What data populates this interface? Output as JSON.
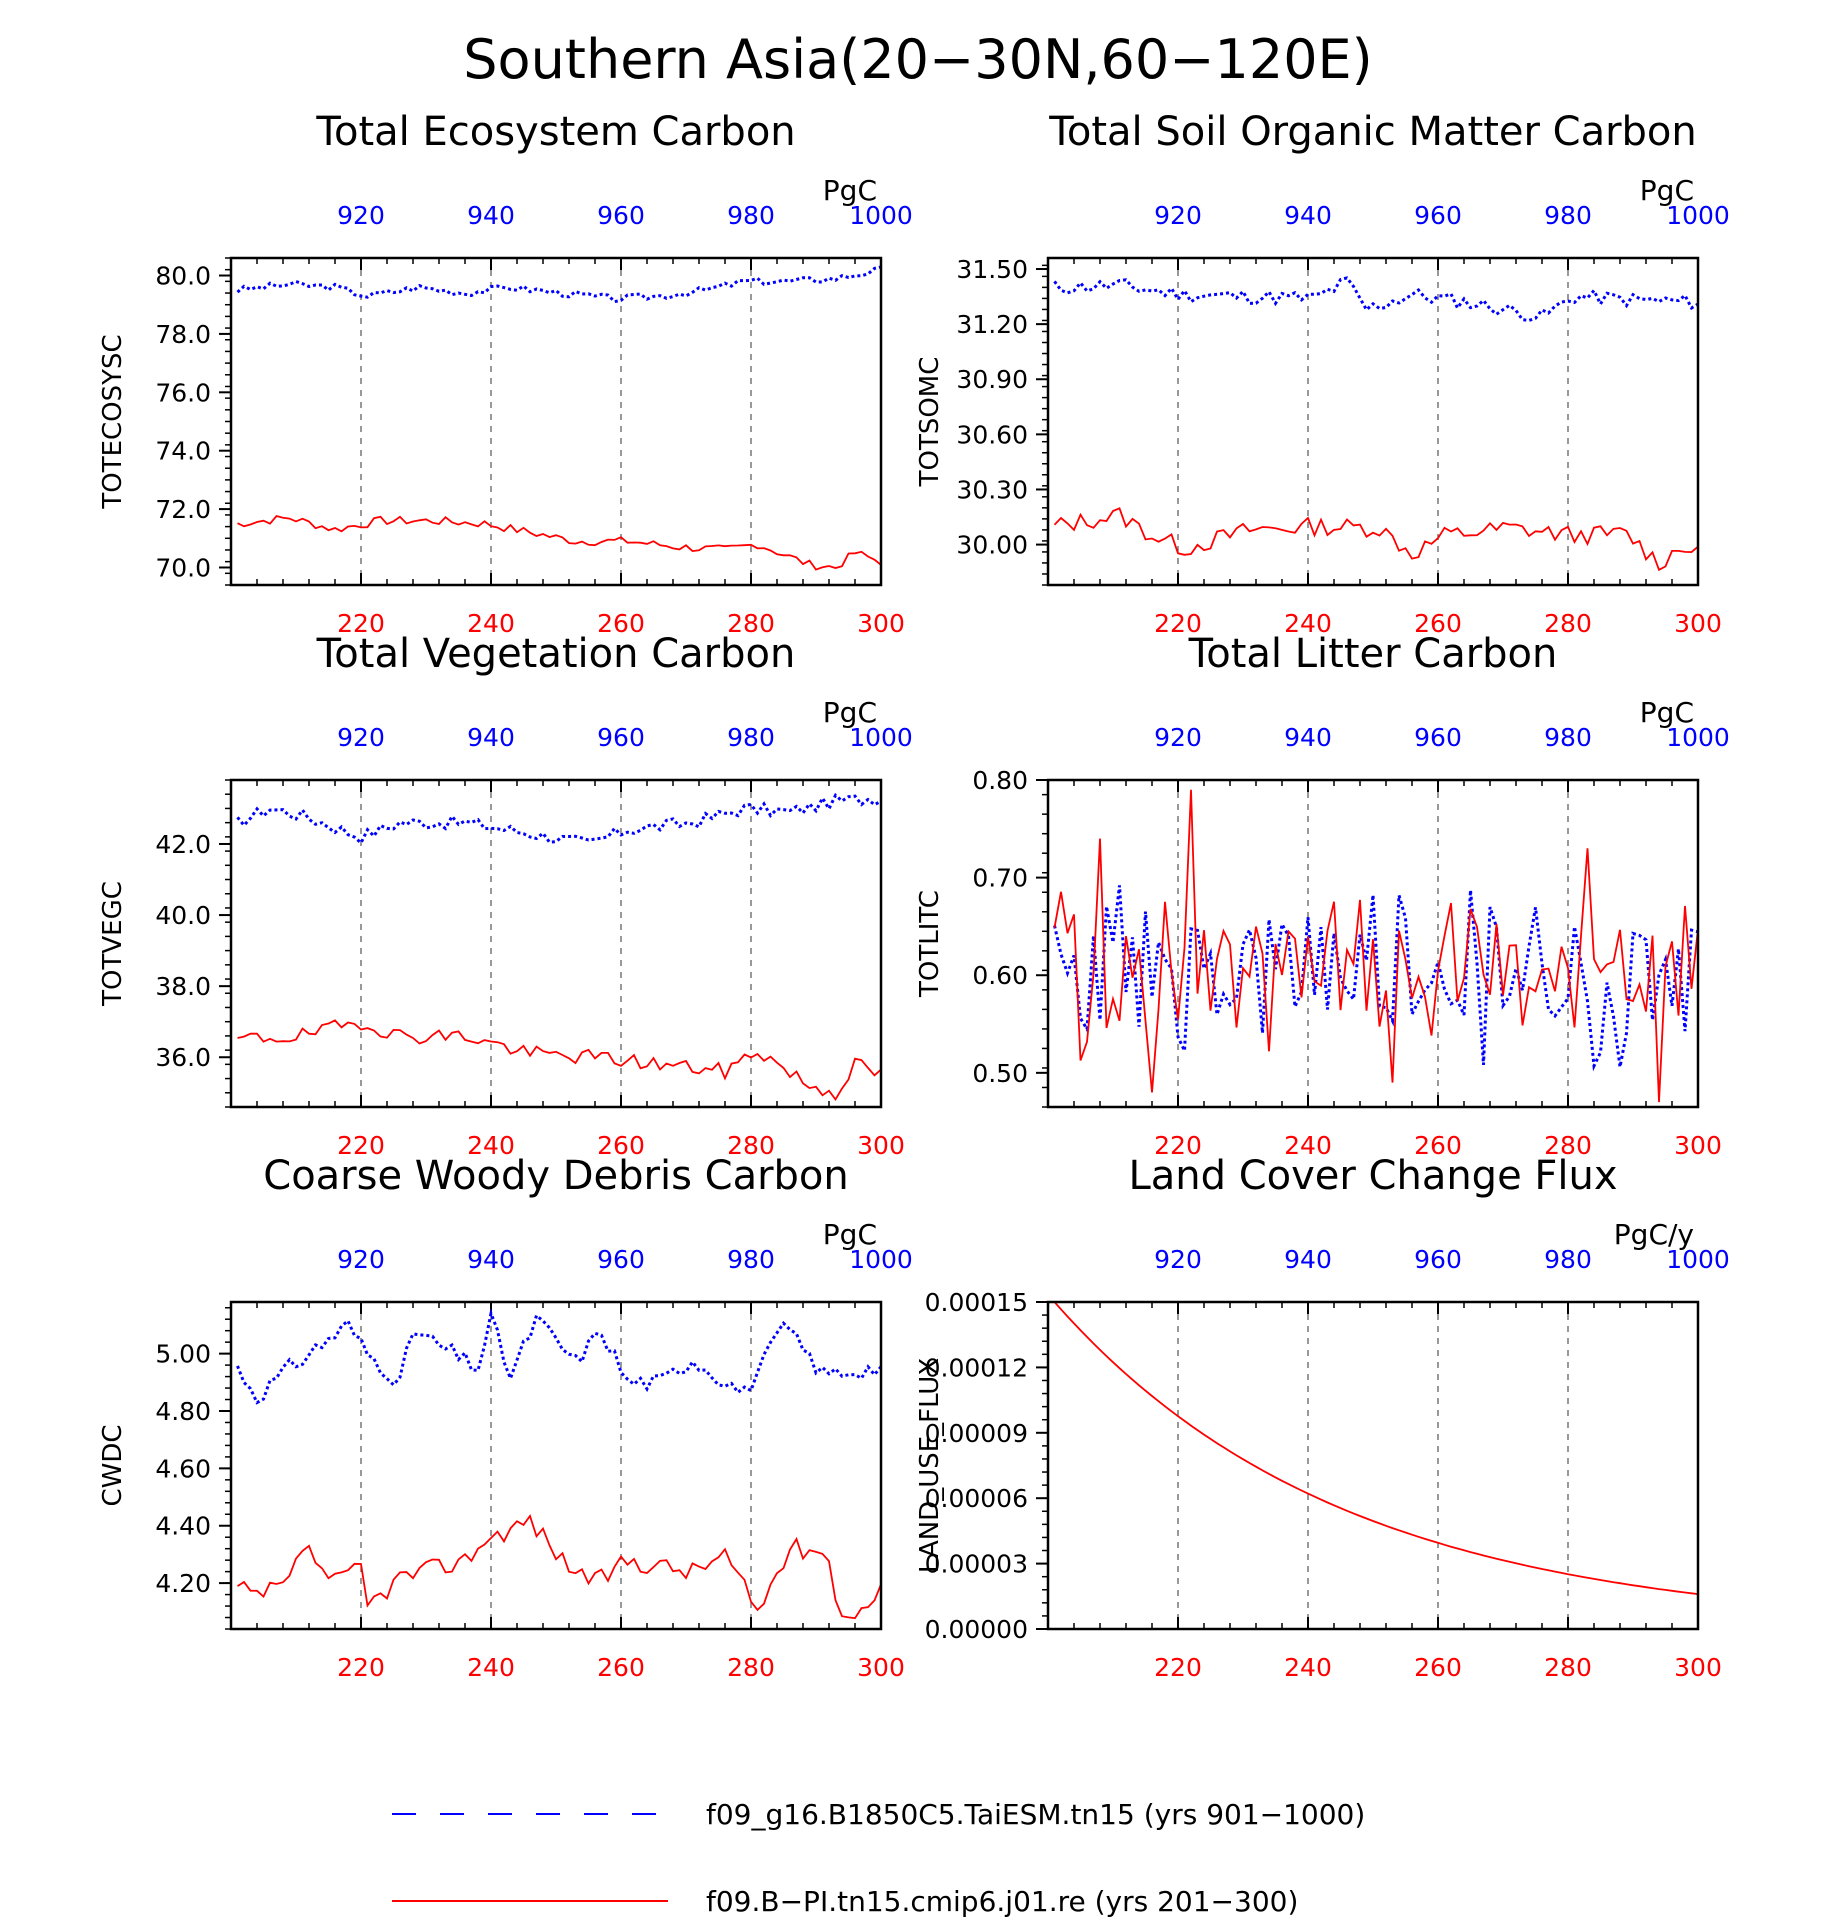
{
  "figure_title": "Southern Asia(20−30N,60−120E)",
  "colors": {
    "blue": "#0000ff",
    "red": "#ff0000",
    "axis": "#000000",
    "grid": "#555555"
  },
  "legend": [
    {
      "label": "f09_g16.B1850C5.TaiESM.tn15 (yrs 901−1000)",
      "color": "#0000ff",
      "style": "long-dash"
    },
    {
      "label": "f09.B−PI.tn15.cmip6.j01.re (yrs 201−300)",
      "color": "#ff0000",
      "style": "solid"
    }
  ],
  "chart_data": [
    {
      "type": "line",
      "title": "Total Ecosystem Carbon",
      "ylabel": "TOTECOSYSC",
      "unit": "PgC",
      "ylim": [
        69.4,
        80.6
      ],
      "yticks": [
        "80.0",
        "78.0",
        "76.0",
        "74.0",
        "72.0",
        "70.0"
      ],
      "top_xaxis": {
        "range": [
          901,
          1000
        ],
        "ticks": [
          "920",
          "940",
          "960",
          "980",
          "1000"
        ]
      },
      "bottom_xaxis": {
        "range": [
          201,
          300
        ],
        "ticks": [
          "220",
          "240",
          "260",
          "280",
          "300"
        ]
      },
      "series": [
        {
          "name": "f09_g16.B1850C5.TaiESM.tn15",
          "color": "#0000ff",
          "keys": [
            [
              0,
              79.5
            ],
            [
              8,
              79.7
            ],
            [
              15,
              79.6
            ],
            [
              20,
              79.3
            ],
            [
              28,
              79.6
            ],
            [
              35,
              79.4
            ],
            [
              42,
              79.6
            ],
            [
              50,
              79.4
            ],
            [
              58,
              79.2
            ],
            [
              65,
              79.3
            ],
            [
              72,
              79.5
            ],
            [
              78,
              79.8
            ],
            [
              85,
              79.8
            ],
            [
              92,
              79.9
            ],
            [
              99,
              80.2
            ]
          ],
          "amp": 0.12,
          "seed": 3
        },
        {
          "name": "f09.B−PI.tn15.cmip6.j01.re",
          "color": "#ff0000",
          "keys": [
            [
              0,
              71.5
            ],
            [
              8,
              71.7
            ],
            [
              15,
              71.3
            ],
            [
              22,
              71.6
            ],
            [
              30,
              71.6
            ],
            [
              38,
              71.5
            ],
            [
              45,
              71.2
            ],
            [
              52,
              70.9
            ],
            [
              60,
              70.9
            ],
            [
              68,
              70.7
            ],
            [
              75,
              70.6
            ],
            [
              80,
              70.8
            ],
            [
              88,
              70.1
            ],
            [
              92,
              70.0
            ],
            [
              95,
              70.5
            ],
            [
              99,
              70.2
            ]
          ],
          "amp": 0.15,
          "seed": 7
        }
      ]
    },
    {
      "type": "line",
      "title": "Total Soil Organic Matter Carbon",
      "ylabel": "TOTSOMC",
      "unit": "PgC",
      "ylim": [
        29.78,
        31.56
      ],
      "yticks": [
        "31.50",
        "31.20",
        "30.90",
        "30.60",
        "30.30",
        "30.00"
      ],
      "top_xaxis": {
        "range": [
          901,
          1000
        ],
        "ticks": [
          "920",
          "940",
          "960",
          "980",
          "1000"
        ]
      },
      "bottom_xaxis": {
        "range": [
          201,
          300
        ],
        "ticks": [
          "220",
          "240",
          "260",
          "280",
          "300"
        ]
      },
      "series": [
        {
          "name": "f09_g16.B1850C5.TaiESM.tn15",
          "color": "#0000ff",
          "keys": [
            [
              0,
              31.4
            ],
            [
              10,
              31.41
            ],
            [
              20,
              31.36
            ],
            [
              30,
              31.35
            ],
            [
              40,
              31.34
            ],
            [
              45,
              31.43
            ],
            [
              48,
              31.28
            ],
            [
              55,
              31.36
            ],
            [
              65,
              31.31
            ],
            [
              75,
              31.24
            ],
            [
              80,
              31.35
            ],
            [
              90,
              31.33
            ],
            [
              99,
              31.32
            ]
          ],
          "amp": 0.04,
          "seed": 11
        },
        {
          "name": "f09.B−PI.tn15.cmip6.j01.re",
          "color": "#ff0000",
          "keys": [
            [
              0,
              30.1
            ],
            [
              10,
              30.16
            ],
            [
              15,
              30.05
            ],
            [
              20,
              29.98
            ],
            [
              30,
              30.08
            ],
            [
              40,
              30.1
            ],
            [
              50,
              30.09
            ],
            [
              55,
              29.95
            ],
            [
              60,
              30.05
            ],
            [
              70,
              30.09
            ],
            [
              80,
              30.05
            ],
            [
              88,
              30.06
            ],
            [
              93,
              29.9
            ],
            [
              97,
              30.0
            ],
            [
              99,
              29.94
            ]
          ],
          "amp": 0.05,
          "seed": 13
        }
      ]
    },
    {
      "type": "line",
      "title": "Total Vegetation Carbon",
      "ylabel": "TOTVEGC",
      "unit": "PgC",
      "ylim": [
        34.6,
        43.8
      ],
      "yticks": [
        "42.0",
        "40.0",
        "38.0",
        "36.0"
      ],
      "top_xaxis": {
        "range": [
          901,
          1000
        ],
        "ticks": [
          "920",
          "940",
          "960",
          "980",
          "1000"
        ]
      },
      "bottom_xaxis": {
        "range": [
          201,
          300
        ],
        "ticks": [
          "220",
          "240",
          "260",
          "280",
          "300"
        ]
      },
      "series": [
        {
          "name": "f09_g16.B1850C5.TaiESM.tn15",
          "color": "#0000ff",
          "keys": [
            [
              0,
              42.6
            ],
            [
              5,
              43.0
            ],
            [
              10,
              42.8
            ],
            [
              19,
              42.2
            ],
            [
              25,
              42.6
            ],
            [
              35,
              42.6
            ],
            [
              45,
              42.3
            ],
            [
              54,
              42.0
            ],
            [
              60,
              42.4
            ],
            [
              70,
              42.6
            ],
            [
              78,
              43.0
            ],
            [
              85,
              42.9
            ],
            [
              92,
              43.2
            ],
            [
              99,
              43.3
            ]
          ],
          "amp": 0.18,
          "seed": 17
        },
        {
          "name": "f09.B−PI.tn15.cmip6.j01.re",
          "color": "#ff0000",
          "keys": [
            [
              0,
              36.5
            ],
            [
              10,
              36.6
            ],
            [
              19,
              37.0
            ],
            [
              25,
              36.6
            ],
            [
              35,
              36.6
            ],
            [
              45,
              36.1
            ],
            [
              55,
              36.0
            ],
            [
              65,
              35.8
            ],
            [
              75,
              35.6
            ],
            [
              80,
              36.2
            ],
            [
              88,
              35.2
            ],
            [
              92,
              35.0
            ],
            [
              95,
              35.8
            ],
            [
              99,
              35.5
            ]
          ],
          "amp": 0.22,
          "seed": 19
        }
      ]
    },
    {
      "type": "line",
      "title": "Total Litter Carbon",
      "ylabel": "TOTLITC",
      "unit": "PgC",
      "ylim": [
        0.465,
        0.8
      ],
      "yticks": [
        "0.80",
        "0.70",
        "0.60",
        "0.50"
      ],
      "top_xaxis": {
        "range": [
          901,
          1000
        ],
        "ticks": [
          "920",
          "940",
          "960",
          "980",
          "1000"
        ]
      },
      "bottom_xaxis": {
        "range": [
          201,
          300
        ],
        "ticks": [
          "220",
          "240",
          "260",
          "280",
          "300"
        ]
      },
      "series": [
        {
          "name": "f09_g16.B1850C5.TaiESM.tn15",
          "color": "#0000ff",
          "keys": [
            [
              0,
              0.6
            ],
            [
              99,
              0.6
            ]
          ],
          "amp": 0.065,
          "seed": 23,
          "noisy": true
        },
        {
          "name": "f09.B−PI.tn15.cmip6.j01.re",
          "color": "#ff0000",
          "keys": [
            [
              0,
              0.6
            ],
            [
              99,
              0.6
            ]
          ],
          "amp": 0.06,
          "seed": 29,
          "noisy": true,
          "peaks": [
            [
              7,
              0.74
            ],
            [
              21,
              0.79
            ],
            [
              15,
              0.48
            ],
            [
              82,
              0.73
            ],
            [
              93,
              0.47
            ],
            [
              52,
              0.49
            ]
          ]
        }
      ]
    },
    {
      "type": "line",
      "title": "Coarse Woody Debris Carbon",
      "ylabel": "CWDC",
      "unit": "PgC",
      "ylim": [
        4.04,
        5.18
      ],
      "yticks": [
        "5.00",
        "4.80",
        "4.60",
        "4.40",
        "4.20"
      ],
      "top_xaxis": {
        "range": [
          901,
          1000
        ],
        "ticks": [
          "920",
          "940",
          "960",
          "980",
          "1000"
        ]
      },
      "bottom_xaxis": {
        "range": [
          201,
          300
        ],
        "ticks": [
          "220",
          "240",
          "260",
          "280",
          "300"
        ]
      },
      "series": [
        {
          "name": "f09_g16.B1850C5.TaiESM.tn15",
          "color": "#0000ff",
          "keys": [
            [
              0,
              4.95
            ],
            [
              3,
              4.85
            ],
            [
              8,
              4.95
            ],
            [
              17,
              5.1
            ],
            [
              20,
              5.0
            ],
            [
              25,
              4.9
            ],
            [
              27,
              5.08
            ],
            [
              37,
              4.95
            ],
            [
              39,
              5.12
            ],
            [
              42,
              4.92
            ],
            [
              46,
              5.12
            ],
            [
              52,
              4.97
            ],
            [
              56,
              5.08
            ],
            [
              60,
              4.9
            ],
            [
              65,
              4.9
            ],
            [
              70,
              4.98
            ],
            [
              78,
              4.86
            ],
            [
              83,
              5.05
            ],
            [
              84,
              5.1
            ],
            [
              90,
              4.93
            ],
            [
              99,
              4.95
            ]
          ],
          "amp": 0.03,
          "seed": 31
        },
        {
          "name": "f09.B−PI.tn15.cmip6.j01.re",
          "color": "#ff0000",
          "keys": [
            [
              0,
              4.18
            ],
            [
              3,
              4.15
            ],
            [
              8,
              4.2
            ],
            [
              10,
              4.33
            ],
            [
              15,
              4.2
            ],
            [
              19,
              4.25
            ],
            [
              20,
              4.12
            ],
            [
              25,
              4.22
            ],
            [
              35,
              4.28
            ],
            [
              38,
              4.35
            ],
            [
              45,
              4.42
            ],
            [
              50,
              4.28
            ],
            [
              55,
              4.2
            ],
            [
              60,
              4.28
            ],
            [
              70,
              4.24
            ],
            [
              75,
              4.3
            ],
            [
              80,
              4.1
            ],
            [
              85,
              4.32
            ],
            [
              90,
              4.32
            ],
            [
              93,
              4.1
            ],
            [
              95,
              4.08
            ],
            [
              99,
              4.2
            ]
          ],
          "amp": 0.035,
          "seed": 37
        }
      ]
    },
    {
      "type": "line",
      "title": "Land Cover Change Flux",
      "ylabel": "LAND_USE_FLUX",
      "unit": "PgC/y",
      "ylim": [
        0.0,
        0.00015
      ],
      "yticks": [
        "0.00015",
        "0.00012",
        "0.00009",
        "0.00006",
        "0.00003",
        "0.00000"
      ],
      "top_xaxis": {
        "range": [
          901,
          1000
        ],
        "ticks": [
          "920",
          "940",
          "960",
          "980",
          "1000"
        ]
      },
      "bottom_xaxis": {
        "range": [
          201,
          300
        ],
        "ticks": [
          "220",
          "240",
          "260",
          "280",
          "300"
        ]
      },
      "series": [
        {
          "name": "f09.B−PI.tn15.cmip6.j01.re",
          "color": "#ff0000",
          "exp": {
            "start": 0.00015,
            "end": 1.6e-05
          }
        }
      ]
    }
  ]
}
